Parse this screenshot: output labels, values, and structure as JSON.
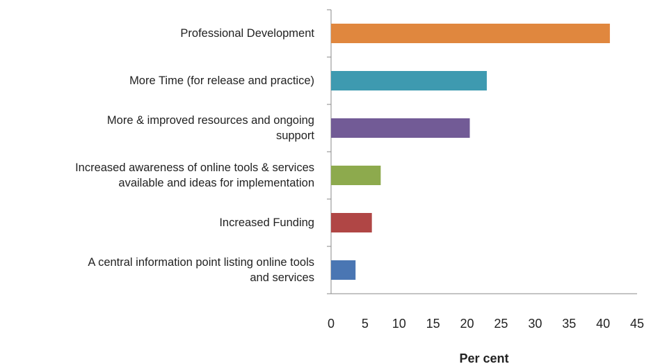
{
  "chart_data": {
    "type": "bar",
    "orientation": "horizontal",
    "x_label": "Per cent",
    "categories": [
      "Professional Development",
      "More Time (for release and practice)",
      "More & improved resources and ongoing\nsupport",
      "Increased awareness of online tools & services\navailable and ideas for implementation",
      "Increased Funding",
      "A central information point listing online tools\nand services"
    ],
    "values": [
      41.0,
      22.9,
      20.4,
      7.3,
      6.0,
      3.6
    ],
    "colors": [
      "#e0873e",
      "#3e9ab0",
      "#725b96",
      "#8daa4d",
      "#b04645",
      "#4a76b3"
    ],
    "xlim": [
      0,
      45
    ],
    "xticks": [
      0,
      5,
      10,
      15,
      20,
      25,
      30,
      35,
      40,
      45
    ],
    "grid": false
  }
}
